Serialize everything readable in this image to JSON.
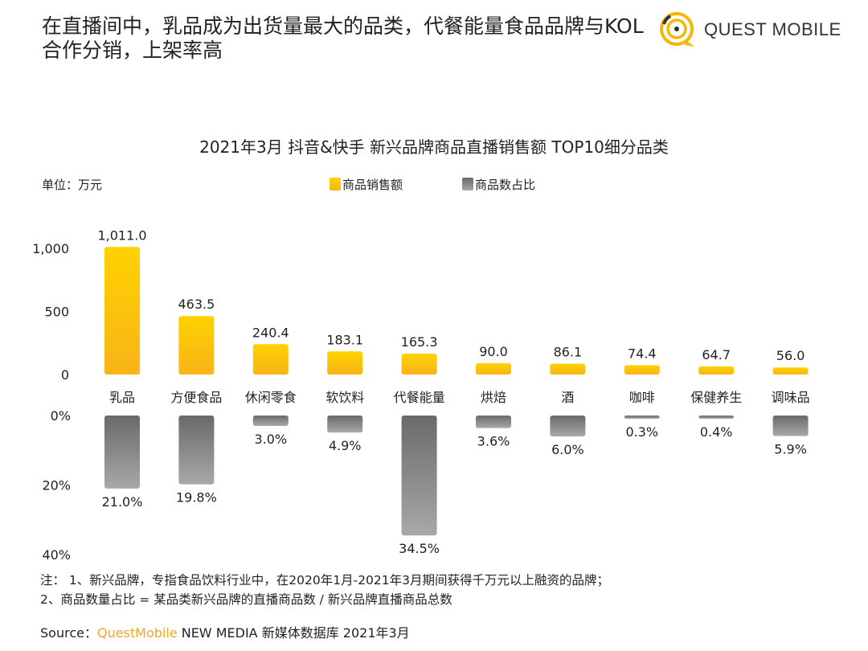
{
  "headline": "在直播间中，乳品成为出货量最大的品类，代餐能量食品品牌与KOL合作分销，上架率高",
  "logo_text": "QUEST MOBILE",
  "chart_data": {
    "type": "bar",
    "title": "2021年3月 抖音&快手 新兴品牌商品直播销售额 TOP10细分品类",
    "unit_label": "单位：万元",
    "categories": [
      "乳品",
      "方便食品",
      "休闲零食",
      "软饮料",
      "代餐能量",
      "烘焙",
      "酒",
      "咖啡",
      "保健养生",
      "调味品"
    ],
    "series": [
      {
        "name": "商品销售额",
        "color": "#ffc000",
        "values": [
          1011.0,
          463.5,
          240.4,
          183.1,
          165.3,
          90.0,
          86.1,
          74.4,
          64.7,
          56.0
        ],
        "labels": [
          "1,011.0",
          "463.5",
          "240.4",
          "183.1",
          "165.3",
          "90.0",
          "86.1",
          "74.4",
          "64.7",
          "56.0"
        ],
        "ylim": [
          0,
          1000
        ],
        "ticks": [
          "0",
          "500",
          "1,000"
        ],
        "tick_values": [
          0,
          500,
          1000
        ]
      },
      {
        "name": "商品数占比",
        "color": "#707070",
        "values": [
          21.0,
          19.8,
          3.0,
          4.9,
          34.5,
          3.6,
          6.0,
          0.3,
          0.4,
          5.9
        ],
        "labels": [
          "21.0%",
          "19.8%",
          "3.0%",
          "4.9%",
          "34.5%",
          "3.6%",
          "6.0%",
          "0.3%",
          "0.4%",
          "5.9%"
        ],
        "ylim": [
          0,
          40
        ],
        "ticks": [
          "0%",
          "20%",
          "40%"
        ],
        "tick_values": [
          0,
          20,
          40
        ]
      }
    ],
    "legend_position": "top-center"
  },
  "notes": {
    "line1": "注：  1、新兴品牌，专指食品饮料行业中，在2020年1月-2021年3月期间获得千万元以上融资的品牌；",
    "line2": "2、商品数量占比 = 某品类新兴品牌的直播商品数 / 新兴品牌直播商品总数"
  },
  "source": {
    "prefix": "Source：",
    "brand": "QuestMobile",
    "rest": " NEW MEDIA 新媒体数据库 2021年3月"
  }
}
